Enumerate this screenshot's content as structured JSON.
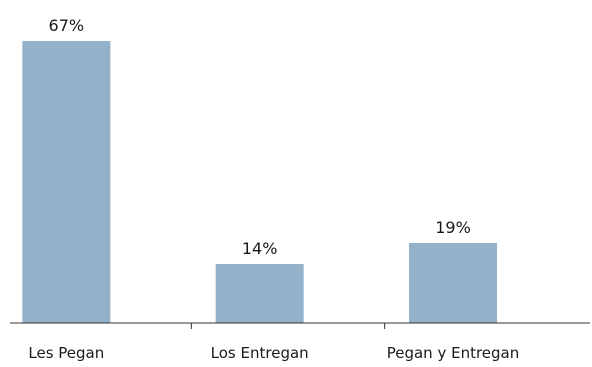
{
  "chart_data": {
    "type": "bar",
    "categories": [
      "Les Pegan",
      "Los Entregan",
      "Pegan y Entregan"
    ],
    "values": [
      67,
      14,
      19
    ],
    "value_labels": [
      "67%",
      "14%",
      "19%"
    ],
    "title": "",
    "xlabel": "",
    "ylabel": "",
    "ylim": [
      0,
      70
    ],
    "grid": false,
    "legend": "none",
    "bar_color": "#93b1c9",
    "axis_color": "#333333"
  }
}
